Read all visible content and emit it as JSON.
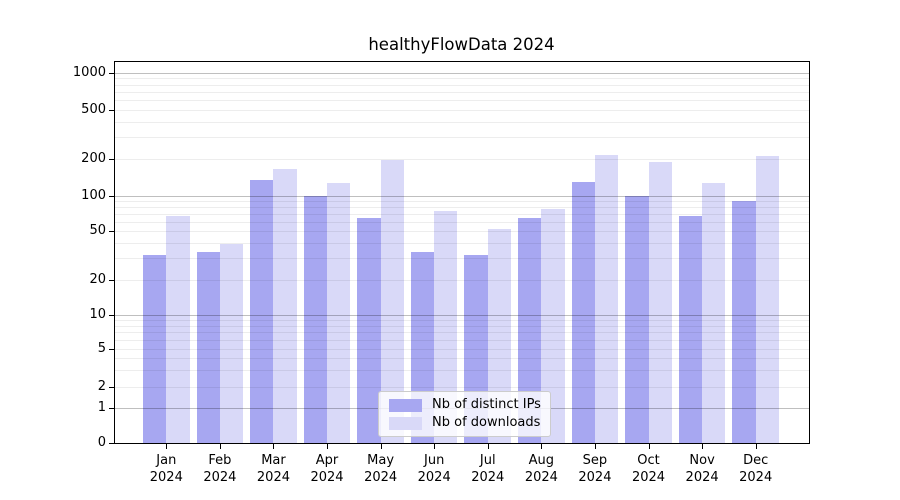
{
  "title": "healthyFlowData 2024",
  "chart_data": {
    "type": "bar",
    "title": "healthyFlowData 2024",
    "categories": [
      "Jan",
      "Feb",
      "Mar",
      "Apr",
      "May",
      "Jun",
      "Jul",
      "Aug",
      "Sep",
      "Oct",
      "Nov",
      "Dec"
    ],
    "year_label": "2024",
    "series": [
      {
        "name": "Nb of distinct IPs",
        "color": "#a7a7f1",
        "values": [
          32,
          34,
          134,
          100,
          65,
          34,
          32,
          65,
          130,
          100,
          67,
          91
        ]
      },
      {
        "name": "Nb of downloads",
        "color": "#d9d9f8",
        "values": [
          67,
          39,
          165,
          127,
          197,
          75,
          52,
          78,
          215,
          188,
          128,
          210
        ]
      }
    ],
    "xlabel": "",
    "ylabel": "",
    "yticks": [
      0,
      1,
      2,
      5,
      10,
      20,
      50,
      100,
      200,
      500,
      1000
    ],
    "ylim": [
      0,
      1400
    ],
    "yscale": "symlog",
    "grid": true,
    "major_grid_values": [
      1,
      10,
      100,
      1000
    ],
    "minor_grid_values": [
      2,
      3,
      4,
      5,
      6,
      7,
      8,
      9,
      20,
      30,
      40,
      50,
      60,
      70,
      80,
      90,
      200,
      300,
      400,
      500,
      600,
      700,
      800,
      900
    ],
    "legend_position": "lower center inside",
    "legend": [
      "Nb of distinct IPs",
      "Nb of downloads"
    ]
  },
  "colors": {
    "bar_dark": "#a7a7f1",
    "bar_light": "#d9d9f8",
    "major_grid": "rgba(0,0,0,0.25)",
    "minor_grid": "rgba(0,0,0,0.07)",
    "spine": "#000000",
    "legend_border": "#cccccc",
    "legend_background": "rgba(255,255,255,0.8)"
  }
}
